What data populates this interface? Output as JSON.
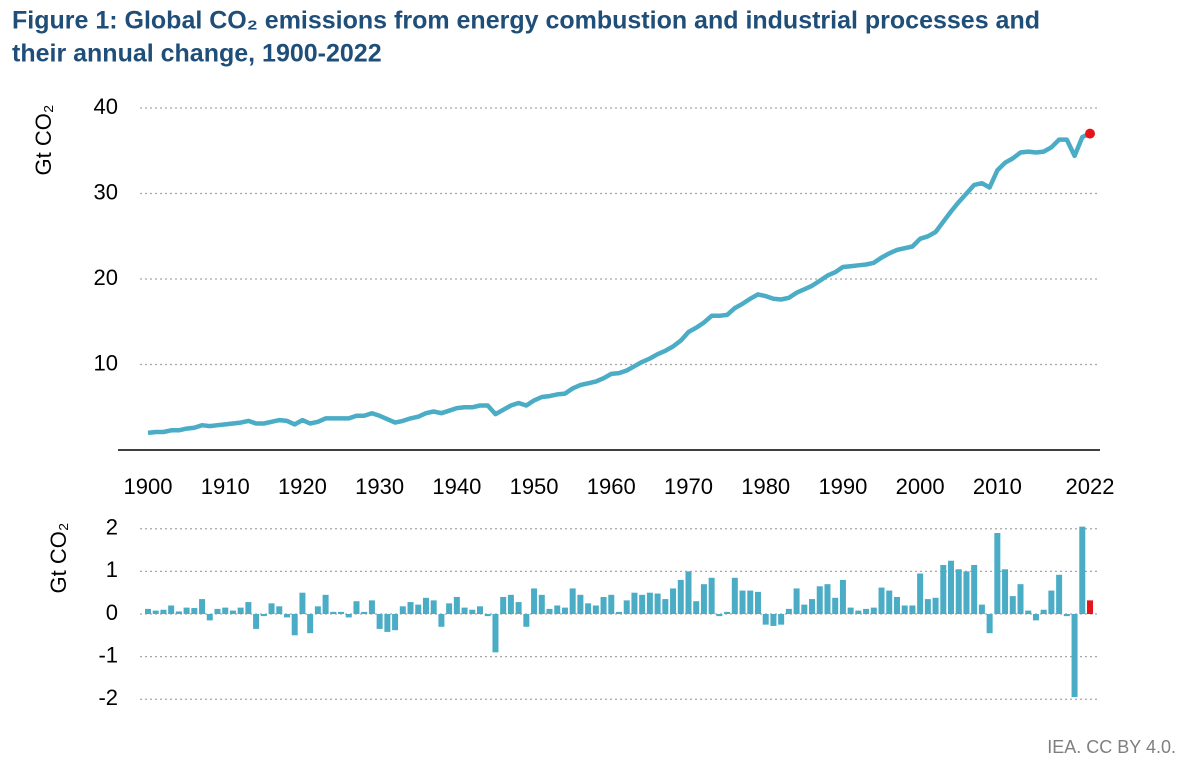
{
  "title_lines": [
    "Figure 1: Global CO₂ emissions from energy combustion and industrial processes and",
    "their annual change, 1900-2022"
  ],
  "source": "IEA. CC BY 4.0.",
  "chart_data": [
    {
      "type": "line",
      "ylabel": "Gt CO₂",
      "color": "#4bacc6",
      "last_point_color": "#e8141a",
      "x": [
        1900,
        1901,
        1902,
        1903,
        1904,
        1905,
        1906,
        1907,
        1908,
        1909,
        1910,
        1911,
        1912,
        1913,
        1914,
        1915,
        1916,
        1917,
        1918,
        1919,
        1920,
        1921,
        1922,
        1923,
        1924,
        1925,
        1926,
        1927,
        1928,
        1929,
        1930,
        1931,
        1932,
        1933,
        1934,
        1935,
        1936,
        1937,
        1938,
        1939,
        1940,
        1941,
        1942,
        1943,
        1944,
        1945,
        1946,
        1947,
        1948,
        1949,
        1950,
        1951,
        1952,
        1953,
        1954,
        1955,
        1956,
        1957,
        1958,
        1959,
        1960,
        1961,
        1962,
        1963,
        1964,
        1965,
        1966,
        1967,
        1968,
        1969,
        1970,
        1971,
        1972,
        1973,
        1974,
        1975,
        1976,
        1977,
        1978,
        1979,
        1980,
        1981,
        1982,
        1983,
        1984,
        1985,
        1986,
        1987,
        1988,
        1989,
        1990,
        1991,
        1992,
        1993,
        1994,
        1995,
        1996,
        1997,
        1998,
        1999,
        2000,
        2001,
        2002,
        2003,
        2004,
        2005,
        2006,
        2007,
        2008,
        2009,
        2010,
        2011,
        2012,
        2013,
        2014,
        2015,
        2016,
        2017,
        2018,
        2019,
        2020,
        2021,
        2022
      ],
      "values": [
        2.0,
        2.1,
        2.1,
        2.3,
        2.3,
        2.5,
        2.6,
        2.9,
        2.8,
        2.9,
        3.0,
        3.1,
        3.2,
        3.4,
        3.1,
        3.1,
        3.3,
        3.5,
        3.4,
        3.0,
        3.5,
        3.1,
        3.3,
        3.7,
        3.7,
        3.7,
        3.7,
        4.0,
        4.0,
        4.3,
        4.0,
        3.6,
        3.2,
        3.4,
        3.7,
        3.9,
        4.3,
        4.5,
        4.3,
        4.6,
        4.9,
        5.0,
        5.0,
        5.2,
        5.2,
        4.2,
        4.7,
        5.2,
        5.5,
        5.2,
        5.8,
        6.2,
        6.3,
        6.5,
        6.6,
        7.2,
        7.6,
        7.8,
        8.0,
        8.4,
        8.9,
        9.0,
        9.3,
        9.8,
        10.3,
        10.7,
        11.2,
        11.6,
        12.1,
        12.8,
        13.8,
        14.3,
        14.9,
        15.7,
        15.7,
        15.8,
        16.6,
        17.1,
        17.7,
        18.2,
        18.0,
        17.7,
        17.6,
        17.8,
        18.4,
        18.8,
        19.2,
        19.8,
        20.4,
        20.8,
        21.4,
        21.5,
        21.6,
        21.7,
        21.9,
        22.5,
        23.0,
        23.4,
        23.6,
        23.8,
        24.7,
        25.0,
        25.5,
        26.7,
        27.9,
        29.0,
        30.0,
        31.0,
        31.2,
        30.7,
        32.7,
        33.6,
        34.1,
        34.8,
        34.9,
        34.8,
        34.9,
        35.4,
        36.3,
        36.3,
        34.4,
        36.6,
        37.0
      ],
      "xlim": [
        1900,
        2022
      ],
      "xticks": [
        1900,
        1910,
        1920,
        1930,
        1940,
        1950,
        1960,
        1970,
        1980,
        1990,
        2000,
        2010,
        2022
      ],
      "ylim": [
        0,
        40
      ],
      "yticks": [
        10,
        20,
        30,
        40
      ],
      "grid": true
    },
    {
      "type": "bar",
      "ylabel": "Gt CO₂",
      "color": "#4bacc6",
      "last_bar_color": "#e8141a",
      "x": [
        1900,
        1901,
        1902,
        1903,
        1904,
        1905,
        1906,
        1907,
        1908,
        1909,
        1910,
        1911,
        1912,
        1913,
        1914,
        1915,
        1916,
        1917,
        1918,
        1919,
        1920,
        1921,
        1922,
        1923,
        1924,
        1925,
        1926,
        1927,
        1928,
        1929,
        1930,
        1931,
        1932,
        1933,
        1934,
        1935,
        1936,
        1937,
        1938,
        1939,
        1940,
        1941,
        1942,
        1943,
        1944,
        1945,
        1946,
        1947,
        1948,
        1949,
        1950,
        1951,
        1952,
        1953,
        1954,
        1955,
        1956,
        1957,
        1958,
        1959,
        1960,
        1961,
        1962,
        1963,
        1964,
        1965,
        1966,
        1967,
        1968,
        1969,
        1970,
        1971,
        1972,
        1973,
        1974,
        1975,
        1976,
        1977,
        1978,
        1979,
        1980,
        1981,
        1982,
        1983,
        1984,
        1985,
        1986,
        1987,
        1988,
        1989,
        1990,
        1991,
        1992,
        1993,
        1994,
        1995,
        1996,
        1997,
        1998,
        1999,
        2000,
        2001,
        2002,
        2003,
        2004,
        2005,
        2006,
        2007,
        2008,
        2009,
        2010,
        2011,
        2012,
        2013,
        2014,
        2015,
        2016,
        2017,
        2018,
        2019,
        2020,
        2021,
        2022
      ],
      "values": [
        0.12,
        0.08,
        0.1,
        0.2,
        0.06,
        0.15,
        0.14,
        0.35,
        -0.15,
        0.12,
        0.15,
        0.08,
        0.15,
        0.28,
        -0.35,
        -0.05,
        0.25,
        0.18,
        -0.08,
        -0.5,
        0.5,
        -0.45,
        0.18,
        0.45,
        0.05,
        0.05,
        -0.08,
        0.3,
        0.05,
        0.32,
        -0.35,
        -0.42,
        -0.38,
        0.18,
        0.28,
        0.22,
        0.38,
        0.32,
        -0.3,
        0.25,
        0.4,
        0.15,
        0.1,
        0.18,
        -0.05,
        -0.9,
        0.4,
        0.45,
        0.28,
        -0.3,
        0.6,
        0.45,
        0.12,
        0.2,
        0.15,
        0.6,
        0.45,
        0.25,
        0.2,
        0.4,
        0.45,
        0.05,
        0.32,
        0.5,
        0.45,
        0.5,
        0.48,
        0.35,
        0.6,
        0.8,
        1.0,
        0.3,
        0.7,
        0.85,
        -0.05,
        0.05,
        0.85,
        0.55,
        0.55,
        0.52,
        -0.25,
        -0.28,
        -0.25,
        0.12,
        0.6,
        0.22,
        0.35,
        0.65,
        0.7,
        0.38,
        0.8,
        0.15,
        0.08,
        0.12,
        0.15,
        0.62,
        0.55,
        0.4,
        0.2,
        0.2,
        0.95,
        0.35,
        0.38,
        1.15,
        1.25,
        1.05,
        1.0,
        1.15,
        0.22,
        -0.45,
        1.9,
        1.05,
        0.42,
        0.7,
        0.08,
        -0.15,
        0.1,
        0.55,
        0.92,
        -0.05,
        -1.95,
        2.05,
        0.32
      ],
      "xlim": [
        1900,
        2022
      ],
      "ylim": [
        -2.3,
        2.3
      ],
      "yticks": [
        -2,
        -1,
        0,
        1,
        2
      ],
      "grid": true
    }
  ]
}
